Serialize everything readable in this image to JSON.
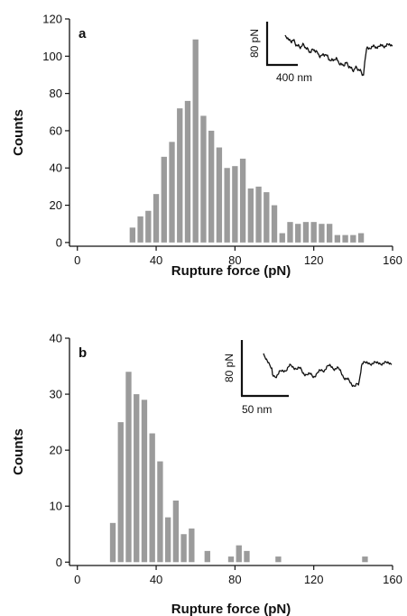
{
  "chart_data": [
    {
      "type": "bar",
      "panel_label": "a",
      "xlabel": "Rupture force (pN)",
      "ylabel": "Counts",
      "xlim": [
        -4,
        160
      ],
      "ylim": [
        -2,
        120
      ],
      "xticks": [
        0,
        40,
        80,
        120,
        160
      ],
      "yticks": [
        0,
        20,
        40,
        60,
        80,
        100,
        120
      ],
      "bin_width": 4,
      "bar_color": "#9b9b9b",
      "x": [
        28,
        32,
        36,
        40,
        44,
        48,
        52,
        56,
        60,
        64,
        68,
        72,
        76,
        80,
        84,
        88,
        92,
        96,
        100,
        104,
        108,
        112,
        116,
        120,
        124,
        128,
        132,
        136,
        140,
        144
      ],
      "values": [
        8,
        14,
        17,
        26,
        46,
        54,
        72,
        76,
        109,
        68,
        60,
        51,
        40,
        41,
        45,
        29,
        30,
        27,
        20,
        5,
        11,
        10,
        11,
        11,
        10,
        10,
        4,
        4,
        4,
        5
      ],
      "inset": {
        "scale_y_label": "80 pN",
        "scale_x_label": "400 nm",
        "trace_color": "#111111"
      }
    },
    {
      "type": "bar",
      "panel_label": "b",
      "xlabel": "Rupture force (pN)",
      "ylabel": "Counts",
      "xlim": [
        -4,
        160
      ],
      "ylim": [
        -0.6,
        40
      ],
      "xticks": [
        0,
        40,
        80,
        120,
        160
      ],
      "yticks": [
        0,
        10,
        20,
        30,
        40
      ],
      "bin_width": 4,
      "bar_color": "#9b9b9b",
      "x": [
        18,
        22,
        26,
        30,
        34,
        38,
        42,
        46,
        50,
        54,
        58,
        62,
        66,
        70,
        74,
        78,
        82,
        86,
        90,
        94,
        98,
        102,
        106,
        110,
        114,
        118,
        122,
        126,
        130,
        134,
        138,
        142,
        146
      ],
      "values": [
        7,
        25,
        34,
        30,
        29,
        23,
        18,
        8,
        11,
        5,
        6,
        0,
        2,
        0,
        0,
        1,
        3,
        2,
        0,
        0,
        0,
        1,
        0,
        0,
        0,
        0,
        0,
        0,
        0,
        0,
        0,
        0,
        1
      ],
      "inset": {
        "scale_y_label": "80 pN",
        "scale_x_label": "50 nm",
        "trace_color": "#111111"
      }
    }
  ]
}
